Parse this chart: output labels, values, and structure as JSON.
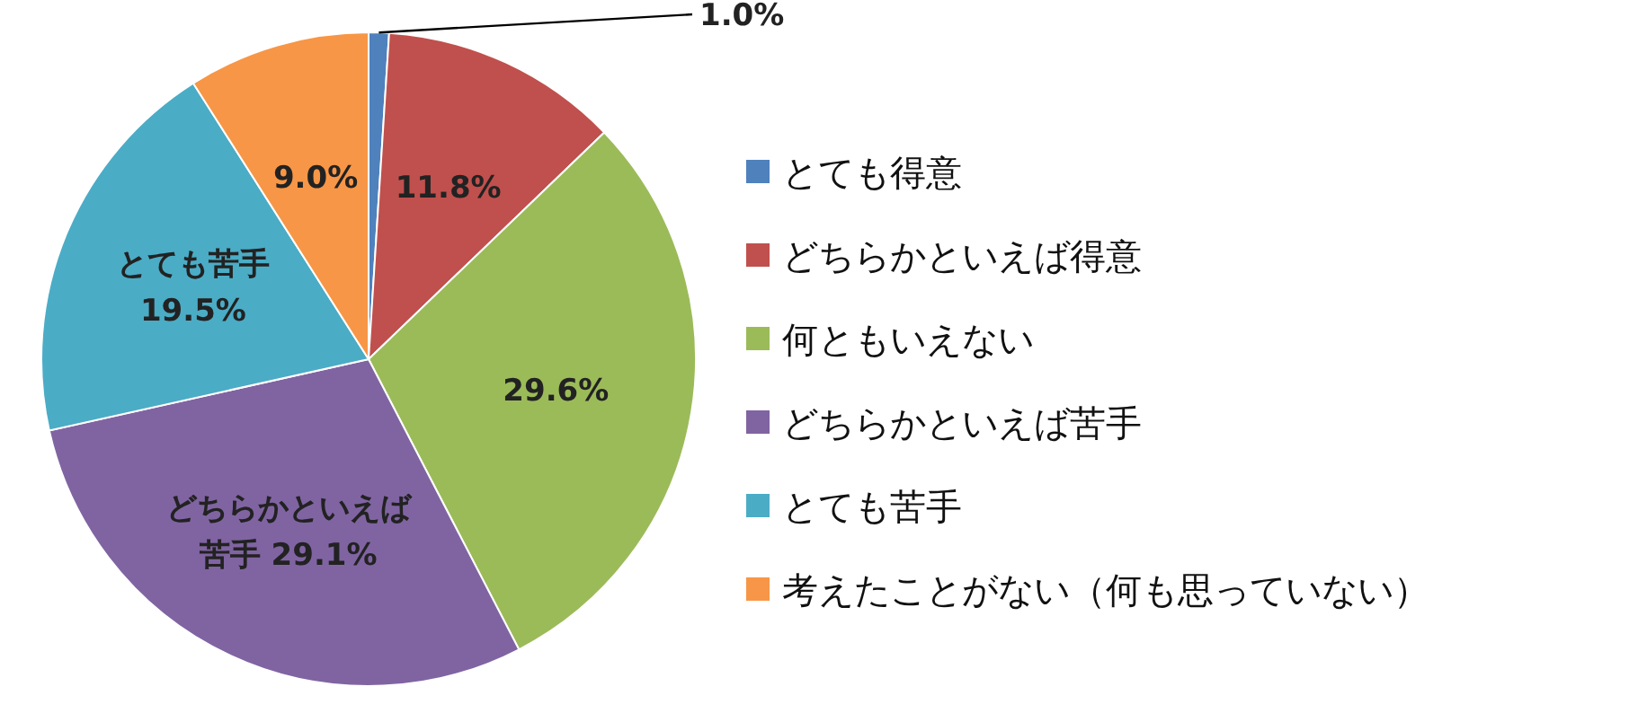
{
  "chart_data": {
    "type": "pie",
    "categories": [
      "とても得意",
      "どちらかといえば得意",
      "何ともいえない",
      "どちらかといえば苦手",
      "とても苦手",
      "考えたことがない（何も思っていない）"
    ],
    "values": [
      1.0,
      11.8,
      29.6,
      29.1,
      19.5,
      9.0
    ],
    "colors": [
      "#4f81bd",
      "#c0504d",
      "#9bbb59",
      "#8064a2",
      "#4bacc6",
      "#f79646"
    ],
    "value_labels": [
      "1.0%",
      "11.8%",
      "29.6%",
      "どちらかといえば苦手 29.1%",
      "とても苦手 19.5%",
      "9.0%"
    ],
    "legend": "right"
  }
}
